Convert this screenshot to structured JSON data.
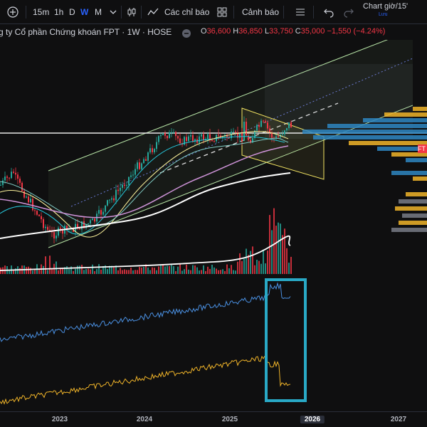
{
  "toolbar": {
    "timeframes": [
      "15m",
      "1h",
      "D",
      "W",
      "M"
    ],
    "active_timeframe": "W",
    "indicators_label": "Các chỉ báo",
    "alerts_label": "Cảnh báo",
    "chart_time_label": "Chart giờ/15'",
    "chart_time_sub": "Lưu",
    "icons": [
      "add-icon",
      "chevron-down-icon",
      "candlestick-icon",
      "grid-icon",
      "list-icon",
      "undo-icon",
      "redo-icon"
    ]
  },
  "legend": {
    "title": "g ty Cổ phần Chứng khoán FPT · 1W · HOSE",
    "open_label": "O",
    "open_value": "36,600",
    "high_label": "H",
    "high_value": "36,850",
    "low_label": "L",
    "low_value": "33,750",
    "close_label": "C",
    "close_value": "35,000",
    "change": "−1,550 (−4.24%)"
  },
  "price_tag": "FT",
  "x_axis": {
    "ticks": [
      {
        "label": "2023",
        "highlight": false
      },
      {
        "label": "2024",
        "highlight": false
      },
      {
        "label": "2025",
        "highlight": false
      },
      {
        "label": "2026",
        "highlight": true
      },
      {
        "label": "2027",
        "highlight": false
      }
    ]
  },
  "colors": {
    "background": "#0f0f10",
    "up": "#26a69a",
    "down": "#f23645",
    "channel": "#b7e4a6",
    "wedge": "#f5e663",
    "highlight_box": "#29a9c6",
    "indicator_blue": "#4a90e2",
    "indicator_orange": "#f0b429"
  }
}
